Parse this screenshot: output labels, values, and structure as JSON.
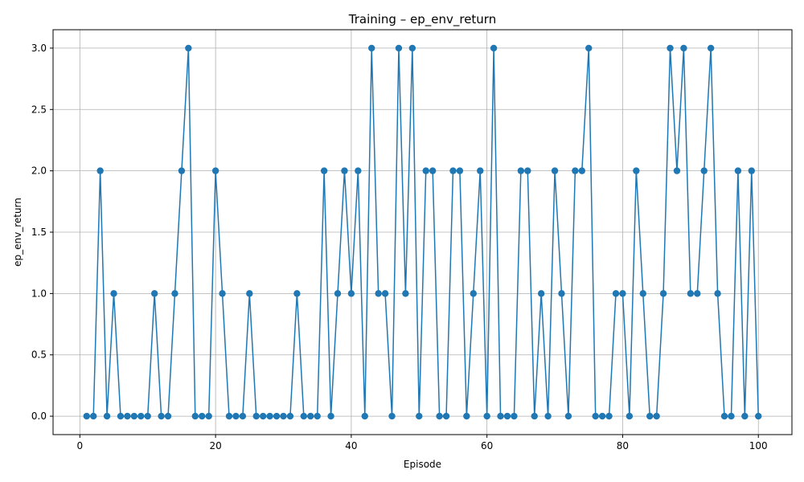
{
  "chart_data": {
    "type": "line",
    "title": "Training – ep_env_return",
    "xlabel": "Episode",
    "ylabel": "ep_env_return",
    "xlim": [
      -3.95,
      104.95
    ],
    "ylim": [
      -0.15,
      3.15
    ],
    "xticks": [
      0,
      20,
      40,
      60,
      80,
      100
    ],
    "xtick_labels": [
      "0",
      "20",
      "40",
      "60",
      "80",
      "100"
    ],
    "yticks": [
      0,
      0.5,
      1,
      1.5,
      2,
      2.5,
      3
    ],
    "ytick_labels": [
      "0.0",
      "0.5",
      "1.0",
      "1.5",
      "2.0",
      "2.5",
      "3.0"
    ],
    "grid": true,
    "line_color": "#1f77b4",
    "marker": "circle",
    "series": [
      {
        "x": [
          1,
          2,
          3,
          4,
          5,
          6,
          7,
          8,
          9,
          10,
          11,
          12,
          13,
          14,
          15,
          16,
          17,
          18,
          19,
          20,
          21,
          22,
          23,
          24,
          25,
          26,
          27,
          28,
          29,
          30,
          31,
          32,
          33,
          34,
          35,
          36,
          37,
          38,
          39,
          40,
          41,
          42,
          43,
          44,
          45,
          46,
          47,
          48,
          49,
          50,
          51,
          52,
          53,
          54,
          55,
          56,
          57,
          58,
          59,
          60,
          61,
          62,
          63,
          64,
          65,
          66,
          67,
          68,
          69,
          70,
          71,
          72,
          73,
          74,
          75,
          76,
          77,
          78,
          79,
          80,
          81,
          82,
          83,
          84,
          85,
          86,
          87,
          88,
          89,
          90,
          91,
          92,
          93,
          94,
          95,
          96,
          97,
          98,
          99,
          100
        ],
        "y": [
          0,
          0,
          2,
          0,
          1,
          0,
          0,
          0,
          0,
          0,
          1,
          0,
          0,
          1,
          2,
          3,
          0,
          0,
          0,
          2,
          1,
          0,
          0,
          0,
          1,
          0,
          0,
          0,
          0,
          0,
          0,
          1,
          0,
          0,
          0,
          2,
          0,
          1,
          2,
          1,
          2,
          0,
          3,
          1,
          1,
          0,
          3,
          1,
          3,
          0,
          2,
          2,
          0,
          0,
          2,
          2,
          0,
          1,
          2,
          0,
          3,
          0,
          0,
          0,
          2,
          2,
          0,
          1,
          0,
          2,
          1,
          0,
          2,
          2,
          3,
          0,
          0,
          0,
          1,
          1,
          0,
          2,
          1,
          0,
          0,
          1,
          3,
          2,
          3,
          1,
          1,
          2,
          3,
          1,
          0,
          0,
          2,
          0,
          2,
          0
        ]
      }
    ]
  }
}
